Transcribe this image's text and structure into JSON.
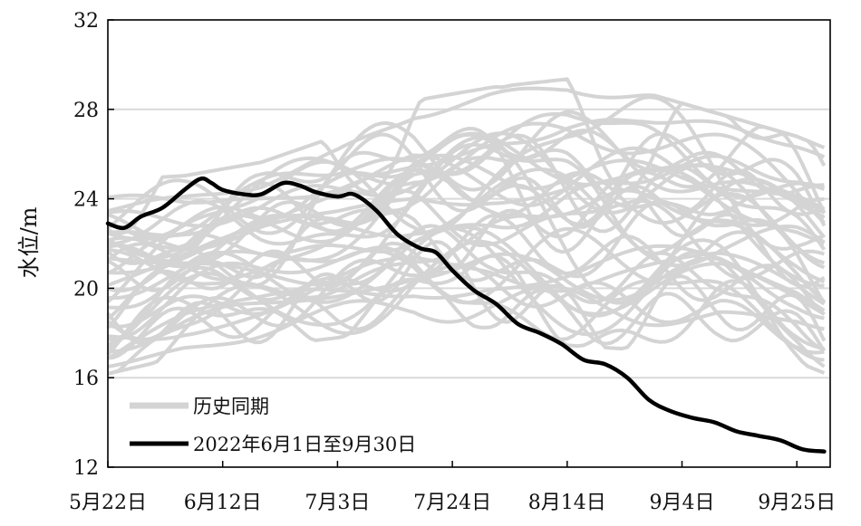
{
  "chart_data": {
    "type": "line",
    "ylabel": "水位/m",
    "ylim": [
      12,
      32
    ],
    "yticks": [
      12,
      16,
      20,
      24,
      28,
      32
    ],
    "xlim": [
      "2022-05-22",
      "2022-09-30"
    ],
    "xticks": [
      {
        "date": "2022-05-22",
        "label": "5月22日"
      },
      {
        "date": "2022-06-12",
        "label": "6月12日"
      },
      {
        "date": "2022-07-03",
        "label": "7月3日"
      },
      {
        "date": "2022-07-24",
        "label": "7月24日"
      },
      {
        "date": "2022-08-14",
        "label": "8月14日"
      },
      {
        "date": "2022-09-04",
        "label": "9月4日"
      },
      {
        "date": "2022-09-25",
        "label": "9月25日"
      }
    ],
    "grid": "horizontal",
    "legend_position": "bottom-left",
    "colors": {
      "historical": "#d4d4d4",
      "current": "#000000"
    },
    "series": [
      {
        "name": "历史同期",
        "kind": "band",
        "note_visible": false,
        "x": [
          "2022-05-22",
          "2022-06-05",
          "2022-06-19",
          "2022-07-03",
          "2022-07-17",
          "2022-07-31",
          "2022-08-14",
          "2022-08-28",
          "2022-09-11",
          "2022-09-25",
          "2022-09-30"
        ],
        "lower": [
          16.0,
          16.8,
          17.2,
          17.6,
          18.2,
          18.0,
          17.2,
          17.0,
          17.2,
          16.5,
          16.0
        ],
        "upper": [
          25.0,
          25.2,
          25.8,
          27.0,
          28.6,
          29.2,
          29.6,
          29.0,
          28.0,
          27.0,
          26.5
        ]
      },
      {
        "name": "2022年6月1日至9月30日",
        "x": [
          "2022-05-22",
          "2022-05-25",
          "2022-05-28",
          "2022-06-01",
          "2022-06-05",
          "2022-06-08",
          "2022-06-10",
          "2022-06-12",
          "2022-06-16",
          "2022-06-19",
          "2022-06-23",
          "2022-06-26",
          "2022-06-29",
          "2022-07-03",
          "2022-07-06",
          "2022-07-10",
          "2022-07-14",
          "2022-07-18",
          "2022-07-21",
          "2022-07-24",
          "2022-07-28",
          "2022-08-01",
          "2022-08-05",
          "2022-08-09",
          "2022-08-13",
          "2022-08-17",
          "2022-08-21",
          "2022-08-25",
          "2022-08-29",
          "2022-09-02",
          "2022-09-06",
          "2022-09-10",
          "2022-09-14",
          "2022-09-18",
          "2022-09-22",
          "2022-09-26",
          "2022-09-30"
        ],
        "values": [
          22.9,
          22.7,
          23.2,
          23.6,
          24.4,
          24.9,
          24.7,
          24.4,
          24.2,
          24.2,
          24.7,
          24.6,
          24.3,
          24.1,
          24.2,
          23.5,
          22.4,
          21.8,
          21.6,
          20.8,
          19.9,
          19.3,
          18.4,
          18.0,
          17.5,
          16.8,
          16.6,
          16.0,
          15.0,
          14.5,
          14.2,
          14.0,
          13.6,
          13.4,
          13.2,
          12.8,
          12.7
        ]
      }
    ]
  }
}
